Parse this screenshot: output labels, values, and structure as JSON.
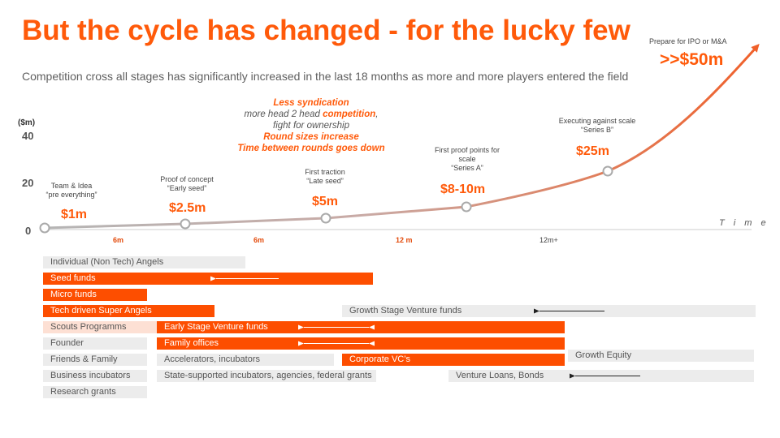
{
  "slide": {
    "title": "But the cycle has changed - for the lucky few",
    "subtitle": "Competition cross all stages has significantly increased in the last 18 months as more and more players entered the field",
    "ipo_label": "Prepare for IPO or M&A",
    "ipo_value": ">>$50m"
  },
  "callout": {
    "line1": "Less syndication",
    "line2_a": "more head 2 head ",
    "line2_b": "competition",
    "line2_c": ",",
    "line3": "fight for ownership",
    "line4": "Round sizes increase",
    "line5": "Time between rounds goes down"
  },
  "chart_data": {
    "type": "line",
    "title": "",
    "ylabel": "($m)",
    "xlabel": "T i m e",
    "ylim": [
      0,
      40
    ],
    "yticks": [
      "0",
      "20",
      "40"
    ],
    "xticks": [
      {
        "label": "6m",
        "highlight": true
      },
      {
        "label": "6m",
        "highlight": true
      },
      {
        "label": "12 m",
        "highlight": true
      },
      {
        "label": "12m+",
        "highlight": false
      }
    ],
    "stages": [
      {
        "label_1": "Team & Idea",
        "label_2": "“pre everything”",
        "label_3": "",
        "value_label": "$1m",
        "value": 1
      },
      {
        "label_1": "Proof of concept",
        "label_2": "“Early seed”",
        "label_3": "",
        "value_label": "$2.5m",
        "value": 2.5
      },
      {
        "label_1": "First traction",
        "label_2": "“Late seed”",
        "label_3": "",
        "value_label": "$5m",
        "value": 5
      },
      {
        "label_1": "First proof points for",
        "label_2": "scale",
        "label_3": "“Series A”",
        "value_label": "$8-10m",
        "value": 9
      },
      {
        "label_1": "Executing against scale",
        "label_2": "“Series B”",
        "label_3": "",
        "value_label": "$25m",
        "value": 25
      }
    ],
    "funding_sources": [
      "Individual (Non Tech) Angels",
      "Seed funds",
      "Micro funds",
      "Tech driven Super Angels",
      "Growth Stage Venture funds",
      "Scouts Programms",
      "Early Stage Venture funds",
      "Founder",
      "Family offices",
      "Friends & Family",
      "Accelerators, incubators",
      "Corporate VC’s",
      "Growth Equity",
      "Business incubators",
      "State-supported incubators, agencies, federal grants",
      "Venture Loans, Bonds",
      "Research grants"
    ]
  },
  "colors": {
    "accent": "#ff5a0a",
    "bar_orange": "#fd4e00",
    "bar_gray": "#ececec",
    "bar_light": "#fde0d4"
  }
}
